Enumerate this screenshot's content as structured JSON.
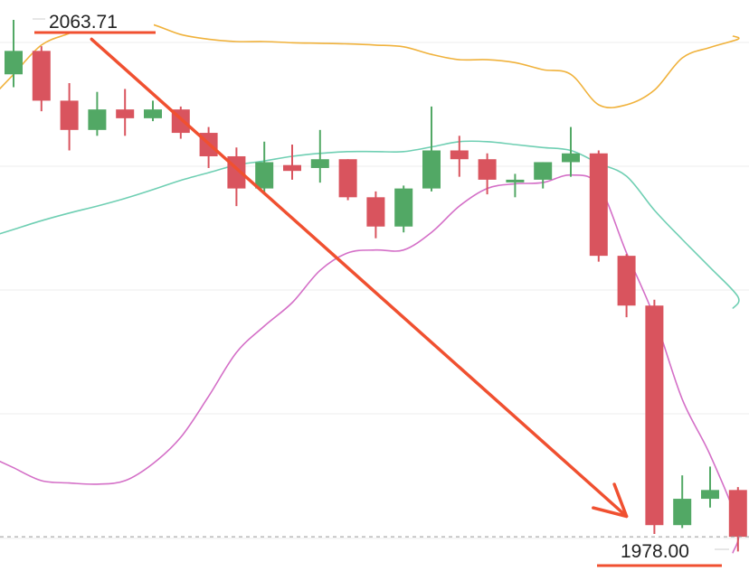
{
  "colors": {
    "up": "#52a865",
    "down": "#d9545e",
    "upper_band": "#f0b23c",
    "middle_band": "#6fcfb3",
    "lower_band": "#d46fc7",
    "grid": "#eeeeee",
    "annotation": "#f05030",
    "dashed_line": "#999999"
  },
  "chart_data": {
    "type": "candlestick",
    "title": "",
    "xlabel": "",
    "ylabel": "",
    "ylim": [
      1975,
      2068
    ],
    "grid": true,
    "candles": [
      {
        "open": 2057.0,
        "high": 2066.3,
        "low": 2054.8,
        "close": 2061.0
      },
      {
        "open": 2061.0,
        "high": 2061.8,
        "low": 2050.7,
        "close": 2052.5
      },
      {
        "open": 2052.5,
        "high": 2055.5,
        "low": 2044.0,
        "close": 2047.5
      },
      {
        "open": 2047.5,
        "high": 2054.0,
        "low": 2046.5,
        "close": 2051.0
      },
      {
        "open": 2051.0,
        "high": 2054.5,
        "low": 2046.5,
        "close": 2049.5
      },
      {
        "open": 2049.5,
        "high": 2052.5,
        "low": 2049.0,
        "close": 2051.0
      },
      {
        "open": 2051.0,
        "high": 2051.5,
        "low": 2046.0,
        "close": 2047.0
      },
      {
        "open": 2047.0,
        "high": 2048.0,
        "low": 2041.0,
        "close": 2043.0
      },
      {
        "open": 2043.0,
        "high": 2044.5,
        "low": 2034.5,
        "close": 2037.5
      },
      {
        "open": 2037.5,
        "high": 2045.5,
        "low": 2036.5,
        "close": 2042.0
      },
      {
        "open": 2041.5,
        "high": 2045.0,
        "low": 2039.0,
        "close": 2040.5
      },
      {
        "open": 2041.0,
        "high": 2047.5,
        "low": 2038.5,
        "close": 2042.5
      },
      {
        "open": 2042.5,
        "high": 2042.5,
        "low": 2035.5,
        "close": 2036.0
      },
      {
        "open": 2036.0,
        "high": 2037.0,
        "low": 2029.0,
        "close": 2031.0
      },
      {
        "open": 2031.0,
        "high": 2038.0,
        "low": 2030.0,
        "close": 2037.5
      },
      {
        "open": 2037.5,
        "high": 2051.5,
        "low": 2037.0,
        "close": 2044.0
      },
      {
        "open": 2044.0,
        "high": 2046.5,
        "low": 2039.5,
        "close": 2042.5
      },
      {
        "open": 2042.5,
        "high": 2043.5,
        "low": 2036.5,
        "close": 2039.0
      },
      {
        "open": 2039.0,
        "high": 2040.0,
        "low": 2036.0,
        "close": 2039.0
      },
      {
        "open": 2039.0,
        "high": 2042.0,
        "low": 2037.5,
        "close": 2042.0
      },
      {
        "open": 2042.0,
        "high": 2048.0,
        "low": 2039.5,
        "close": 2043.5
      },
      {
        "open": 2043.5,
        "high": 2044.0,
        "low": 2025.0,
        "close": 2026.0
      },
      {
        "open": 2026.0,
        "high": 2026.3,
        "low": 2015.5,
        "close": 2017.5
      },
      {
        "open": 2017.5,
        "high": 2018.5,
        "low": 1978.5,
        "close": 1980.0
      },
      {
        "open": 1980.0,
        "high": 1988.5,
        "low": 1979.5,
        "close": 1984.5
      },
      {
        "open": 1984.5,
        "high": 1990.0,
        "low": 1983.0,
        "close": 1986.0
      },
      {
        "open": 1986.0,
        "high": 1986.5,
        "low": 1975.5,
        "close": 1978.0
      }
    ],
    "bollinger": {
      "upper": [
        2057,
        2062,
        2064,
        2066,
        2066.5,
        2065.5,
        2063.8,
        2063.0,
        2062.6,
        2062.6,
        2062.4,
        2062.3,
        2062.2,
        2062.0,
        2061.7,
        2060.4,
        2059.5,
        2059.5,
        2059.0,
        2057.8,
        2057.0,
        2051.8,
        2051.8,
        2054.3,
        2059.8,
        2061.6,
        2063.0
      ],
      "middle": [
        2030.5,
        2032.0,
        2033.3,
        2034.5,
        2035.8,
        2037.3,
        2038.9,
        2040.2,
        2041.5,
        2042.2,
        2043.0,
        2043.5,
        2043.8,
        2043.8,
        2043.8,
        2044.6,
        2045.5,
        2045.5,
        2045.0,
        2044.5,
        2044.0,
        2041.8,
        2039.6,
        2033.8,
        2028.8,
        2024.0,
        2019.0
      ],
      "lower": [
        1989.8,
        1987.6,
        1987.2,
        1987.0,
        1987.6,
        1990.5,
        1995.0,
        2002.0,
        2009.5,
        2014.0,
        2018.0,
        2023.5,
        2026.5,
        2027.0,
        2027.0,
        2030.0,
        2034.5,
        2037.5,
        2038.3,
        2038.5,
        2039.8,
        2038.0,
        2026.5,
        2015.5,
        2001.5,
        1992.0,
        1980.0
      ]
    },
    "annotations": {
      "high_price": "2063.71",
      "low_price": "1978.00"
    },
    "trend_arrow": {
      "from": {
        "index": 2.8,
        "price": 2063.0
      },
      "to": {
        "index": 22.0,
        "price": 1981.5
      }
    },
    "reference_line_price": 1978.0
  }
}
